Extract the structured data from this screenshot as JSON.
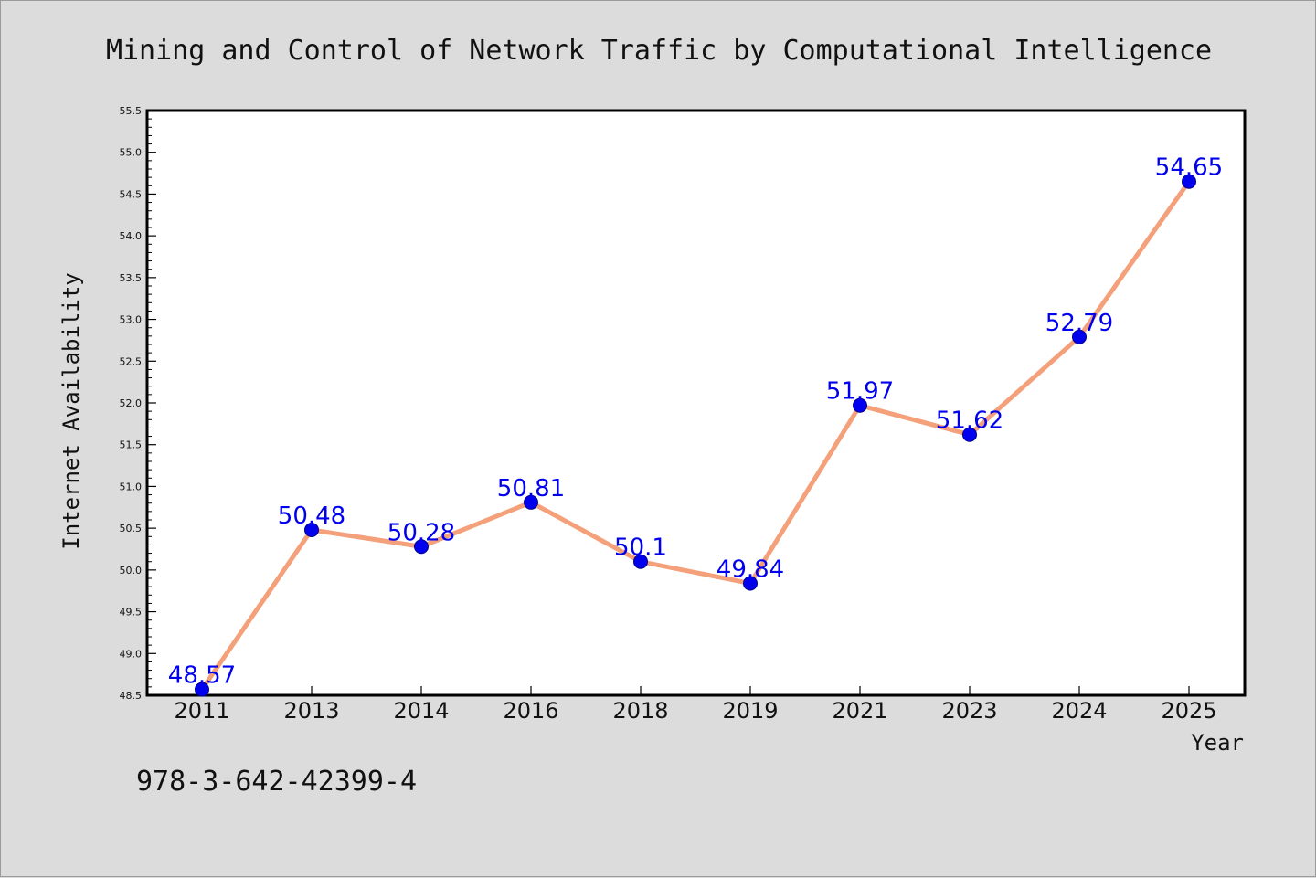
{
  "chart_data": {
    "type": "line",
    "title": "Mining and Control of Network Traffic by Computational Intelligence",
    "xlabel": "Year",
    "ylabel": "Internet Availability",
    "categories": [
      "2011",
      "2013",
      "2014",
      "2016",
      "2018",
      "2019",
      "2021",
      "2023",
      "2024",
      "2025"
    ],
    "series": [
      {
        "values": [
          48.57,
          50.48,
          50.28,
          50.81,
          50.1,
          49.84,
          51.97,
          51.62,
          52.79,
          54.65
        ],
        "data_labels": [
          "48.57",
          "50.48",
          "50.28",
          "50.81",
          "50.1",
          "49.84",
          "51.97",
          "51.62",
          "52.79",
          "54.65"
        ],
        "line_color": "#f4a07a",
        "marker_color": "#0000ee"
      }
    ],
    "ylim": [
      48.5,
      55.5
    ],
    "yticks": [
      "48.5",
      "49.0",
      "49.5",
      "50.0",
      "50.5",
      "51.0",
      "51.5",
      "52.0",
      "52.5",
      "53.0",
      "53.5",
      "54.0",
      "54.5",
      "55.0",
      "55.5"
    ],
    "grid": false,
    "legend": "none",
    "label_color": "#0000ee"
  },
  "footnote": "978-3-642-42399-4",
  "colors": {
    "background": "#dcdcdc",
    "plot_background": "#ffffff"
  }
}
